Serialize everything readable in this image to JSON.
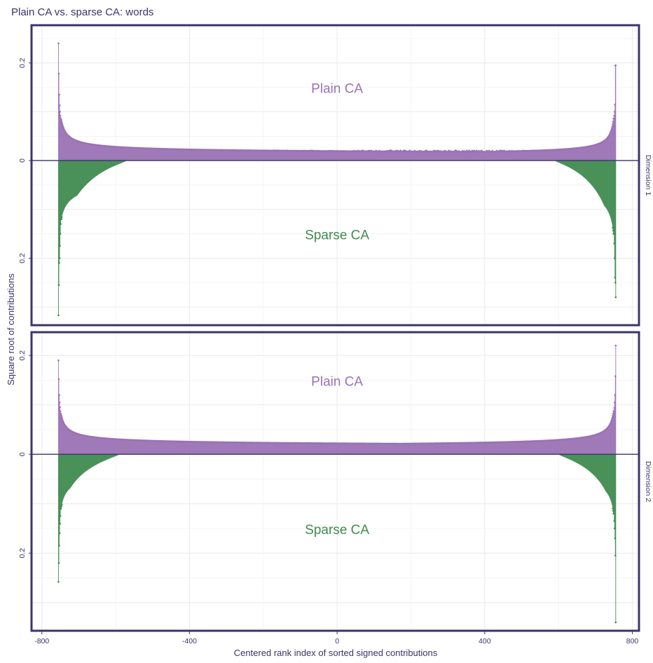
{
  "chart_data": {
    "type": "bar",
    "title": "Plain CA vs. sparse CA: words",
    "xlabel": "Centered rank index of sorted signed contributions",
    "ylabel": "Square root of contributions",
    "xlim": [
      -800,
      800
    ],
    "x_ticks": [
      "-800",
      "-400",
      "0",
      "400",
      "800"
    ],
    "y_tick_labels": [
      "0.2",
      "0",
      "0.2"
    ],
    "grid": true,
    "colors": {
      "plain": "#9b72b5",
      "sparse": "#3f8b50",
      "frame": "#3b3468",
      "baseline": "#3b3468",
      "grid": "#ececec",
      "text": "#3b3468"
    },
    "n_points": 1510,
    "x_range": [
      -755,
      755
    ],
    "panels": [
      {
        "strip_label": "Dimension 1",
        "ylim": [
          -0.32,
          0.26
        ],
        "y_ticks": [
          0.2,
          0,
          -0.2
        ],
        "annotations": {
          "upper": "Plain CA",
          "lower": "Sparse CA"
        },
        "series": [
          {
            "name": "Plain CA",
            "direction": "up",
            "edge_left": [
              0.24,
              0.178,
              0.135,
              0.113,
              0.1,
              0.092,
              0.087,
              0.083
            ],
            "edge_right": [
              0.195,
              0.195,
              0.115,
              0.1,
              0.092,
              0.086
            ],
            "floor_left": 0.012,
            "floor_right": 0.01,
            "decay_left": 14,
            "decay_right": 12,
            "middle_level": 0.015,
            "middle_noise": 0.006
          },
          {
            "name": "Sparse CA",
            "direction": "down",
            "edge_left": [
              0.317,
              0.255,
              0.21,
              0.2,
              0.175,
              0.15,
              0.13,
              0.12
            ],
            "edge_right": [
              0.28,
              0.25,
              0.24,
              0.2,
              0.17,
              0.15
            ],
            "floor_left": 0.0,
            "floor_right": 0.0,
            "decay_left": 30,
            "decay_right": 28,
            "zero_from": -570,
            "zero_to": 590
          }
        ]
      },
      {
        "strip_label": "Dimension 2",
        "ylim": [
          -0.34,
          0.23
        ],
        "y_ticks": [
          0.2,
          0,
          -0.2
        ],
        "annotations": {
          "upper": "Plain CA",
          "lower": "Sparse CA"
        },
        "series": [
          {
            "name": "Plain CA",
            "direction": "up",
            "edge_left": [
              0.19,
              0.152,
              0.12,
              0.105,
              0.095,
              0.087,
              0.082
            ],
            "edge_right": [
              0.22,
              0.158,
              0.12,
              0.105,
              0.094,
              0.087
            ],
            "floor_left": 0.014,
            "floor_right": 0.012,
            "decay_left": 16,
            "decay_right": 16,
            "middle_level": 0.013,
            "middle_noise": 0.008
          },
          {
            "name": "Sparse CA",
            "direction": "down",
            "edge_left": [
              0.258,
              0.22,
              0.185,
              0.16,
              0.14,
              0.125,
              0.11
            ],
            "edge_right": [
              0.34,
              0.205,
              0.17,
              0.15,
              0.135,
              0.12
            ],
            "floor_left": 0.0,
            "floor_right": 0.0,
            "decay_left": 26,
            "decay_right": 26,
            "zero_from": -590,
            "zero_to": 600
          }
        ]
      }
    ]
  }
}
